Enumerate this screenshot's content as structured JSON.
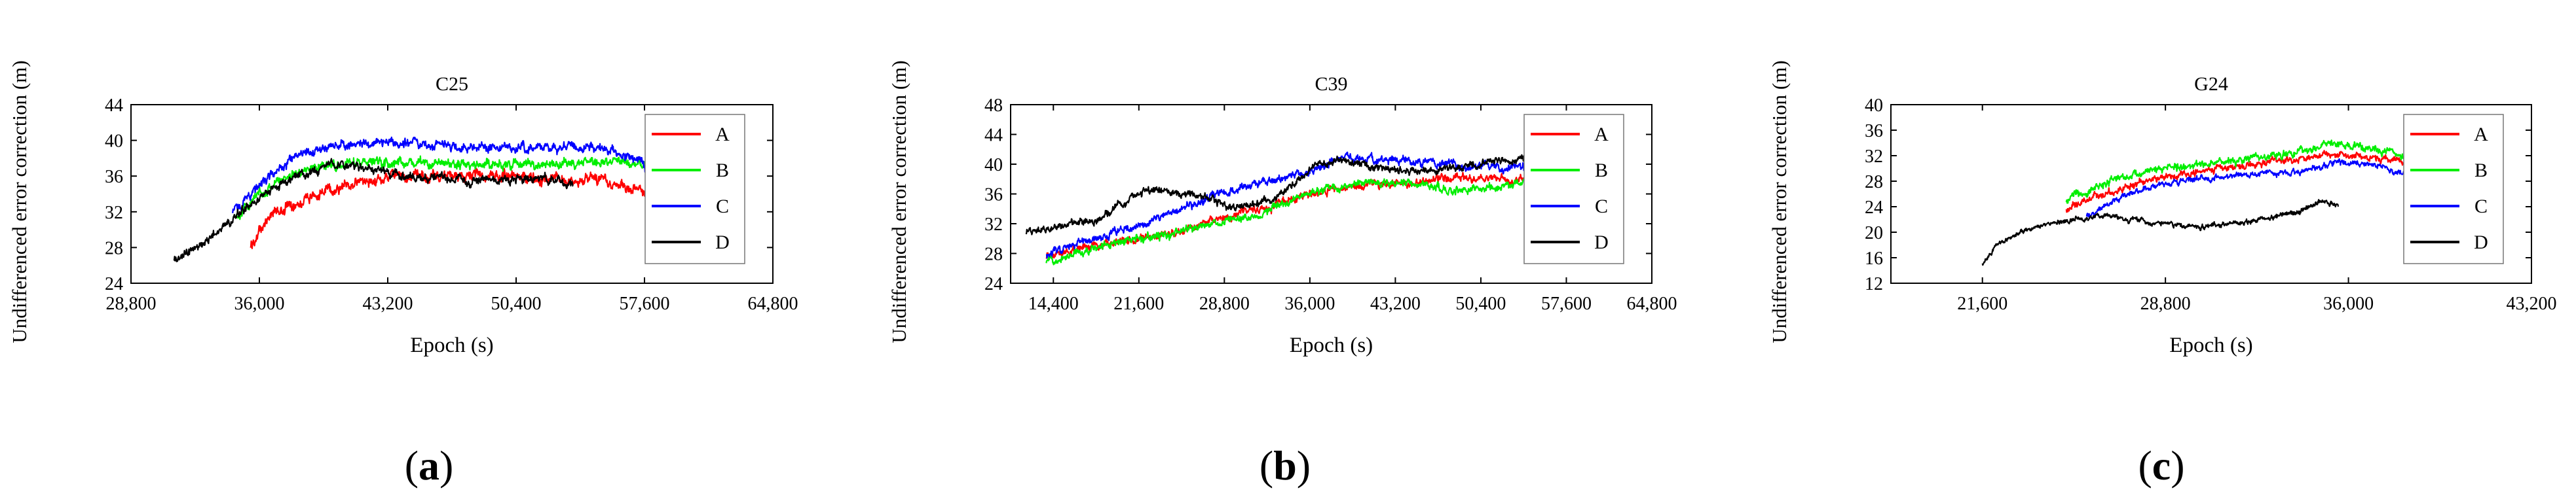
{
  "colors": {
    "A": "#ff0000",
    "B": "#00ee00",
    "C": "#0000ff",
    "D": "#000000",
    "axis": "#000000"
  },
  "chart_data": [
    {
      "type": "line",
      "panel_label": "a",
      "title": "C25",
      "xlabel": "Epoch (s)",
      "ylabel": "Undifferenced error correction (m)",
      "xlim": [
        28800,
        64800
      ],
      "ylim": [
        24,
        44
      ],
      "xticks": [
        28800,
        36000,
        43200,
        50400,
        57600,
        64800
      ],
      "xtick_labels": [
        "28,800",
        "36,000",
        "43,200",
        "50,400",
        "57,600",
        "64,800"
      ],
      "yticks": [
        24,
        28,
        32,
        36,
        40,
        44
      ],
      "ytick_labels": [
        "24",
        "28",
        "32",
        "36",
        "40",
        "44"
      ],
      "grid": false,
      "legend_position": "right",
      "series": [
        {
          "name": "A",
          "noise": 0.7,
          "x": [
            35500,
            36500,
            38000,
            40000,
            42000,
            44000,
            48000,
            52000,
            55000,
            56000,
            57700
          ],
          "y": [
            28,
            31.5,
            33,
            34.5,
            35.5,
            36,
            36,
            35.8,
            35.5,
            35.2,
            34
          ]
        },
        {
          "name": "B",
          "noise": 0.6,
          "x": [
            34700,
            36000,
            37500,
            39000,
            41000,
            44000,
            48000,
            52000,
            55000,
            56500,
            57700
          ],
          "y": [
            31.5,
            34,
            36,
            37,
            37.5,
            37.5,
            37.3,
            37.3,
            37.5,
            37.5,
            37.2
          ]
        },
        {
          "name": "C",
          "noise": 0.6,
          "x": [
            34500,
            36000,
            38000,
            40000,
            42000,
            44000,
            46000,
            48000,
            52000,
            55000,
            57000,
            57700
          ],
          "y": [
            32,
            35,
            38,
            39.5,
            39.7,
            39.8,
            39.5,
            39.2,
            39.2,
            39.3,
            38,
            37
          ]
        },
        {
          "name": "D",
          "noise": 0.55,
          "x": [
            31200,
            32500,
            34000,
            36000,
            38000,
            40000,
            42000,
            44000,
            48000,
            52000,
            53600
          ],
          "y": [
            26.5,
            28,
            30.5,
            33.5,
            36,
            37.2,
            37,
            36,
            35.5,
            35.8,
            35
          ]
        }
      ]
    },
    {
      "type": "line",
      "panel_label": "b",
      "title": "C39",
      "xlabel": "Epoch (s)",
      "ylabel": "Undifferenced error correction (m)",
      "xlim": [
        10800,
        64800
      ],
      "ylim": [
        24,
        48
      ],
      "xticks": [
        14400,
        21600,
        28800,
        36000,
        43200,
        50400,
        57600,
        64800
      ],
      "xtick_labels": [
        "14,400",
        "21,600",
        "28,800",
        "36,000",
        "43,200",
        "50,400",
        "57,600",
        "64,800"
      ],
      "yticks": [
        24,
        28,
        32,
        36,
        40,
        44,
        48
      ],
      "ytick_labels": [
        "24",
        "28",
        "32",
        "36",
        "40",
        "44",
        "48"
      ],
      "grid": false,
      "legend_position": "right",
      "series": [
        {
          "name": "A",
          "noise": 0.6,
          "x": [
            13800,
            16000,
            20000,
            24000,
            28000,
            32000,
            36000,
            40000,
            44000,
            48000,
            52000,
            57600
          ],
          "y": [
            27.8,
            28.5,
            29.5,
            30.5,
            32.5,
            34,
            36,
            37,
            37.5,
            38,
            38,
            37.2
          ]
        },
        {
          "name": "B",
          "noise": 0.6,
          "x": [
            13800,
            16000,
            20000,
            24000,
            28000,
            32000,
            36000,
            40000,
            44000,
            48000,
            52000,
            57600
          ],
          "y": [
            27,
            28,
            29.5,
            30.5,
            32,
            33.5,
            36,
            37.5,
            37.5,
            36.5,
            37,
            38
          ]
        },
        {
          "name": "C",
          "noise": 0.6,
          "x": [
            13800,
            16000,
            20000,
            24000,
            28000,
            32000,
            36000,
            39000,
            44000,
            48000,
            52000,
            57600
          ],
          "y": [
            28,
            29,
            31,
            33,
            36,
            37.5,
            39,
            41,
            40.5,
            40,
            39.5,
            40
          ]
        },
        {
          "name": "D",
          "noise": 0.55,
          "x": [
            12100,
            15000,
            18000,
            22000,
            26000,
            30000,
            33000,
            36000,
            38000,
            40000,
            44000,
            48000,
            52000,
            57600
          ],
          "y": [
            31,
            31.5,
            32.5,
            36.5,
            36,
            34,
            35.5,
            39,
            40.5,
            40,
            39,
            39.5,
            40.5,
            41.5
          ]
        }
      ]
    },
    {
      "type": "line",
      "panel_label": "c",
      "title": "G24",
      "xlabel": "Epoch (s)",
      "ylabel": "Undifferenced error correction (m)",
      "xlim": [
        18000,
        43200
      ],
      "ylim": [
        12,
        40
      ],
      "xticks": [
        21600,
        28800,
        36000,
        43200
      ],
      "xtick_labels": [
        "21,600",
        "28,800",
        "36,000",
        "43,200"
      ],
      "yticks": [
        12,
        16,
        20,
        24,
        28,
        32,
        36,
        40
      ],
      "ytick_labels": [
        "12",
        "16",
        "20",
        "24",
        "28",
        "32",
        "36",
        "40"
      ],
      "grid": false,
      "legend_position": "right",
      "series": [
        {
          "name": "A",
          "noise": 0.6,
          "x": [
            24900,
            26000,
            28000,
            30000,
            32000,
            34000,
            35500,
            37000,
            38700
          ],
          "y": [
            23.5,
            25.5,
            28,
            29.5,
            30.5,
            31.5,
            32.5,
            31.5,
            30.5
          ]
        },
        {
          "name": "B",
          "noise": 0.7,
          "x": [
            24900,
            26000,
            28000,
            30000,
            32000,
            34000,
            35500,
            37000,
            38700
          ],
          "y": [
            25,
            27,
            29.5,
            30.5,
            31.5,
            32.5,
            34,
            33,
            31.5
          ]
        },
        {
          "name": "C",
          "noise": 0.5,
          "x": [
            25700,
            27000,
            28500,
            30000,
            32000,
            34000,
            35500,
            37000,
            38700
          ],
          "y": [
            22.5,
            25.5,
            27.5,
            28.5,
            29,
            29.5,
            31,
            30.5,
            29
          ]
        },
        {
          "name": "D",
          "noise": 0.45,
          "x": [
            21600,
            22200,
            23300,
            24500,
            26000,
            27500,
            29000,
            30500,
            31800,
            32500,
            33200,
            34000,
            35000,
            35600
          ],
          "y": [
            15,
            18,
            20.5,
            21.5,
            22.5,
            22,
            21,
            21,
            21.5,
            22,
            22.5,
            23,
            25,
            24
          ]
        }
      ]
    }
  ]
}
